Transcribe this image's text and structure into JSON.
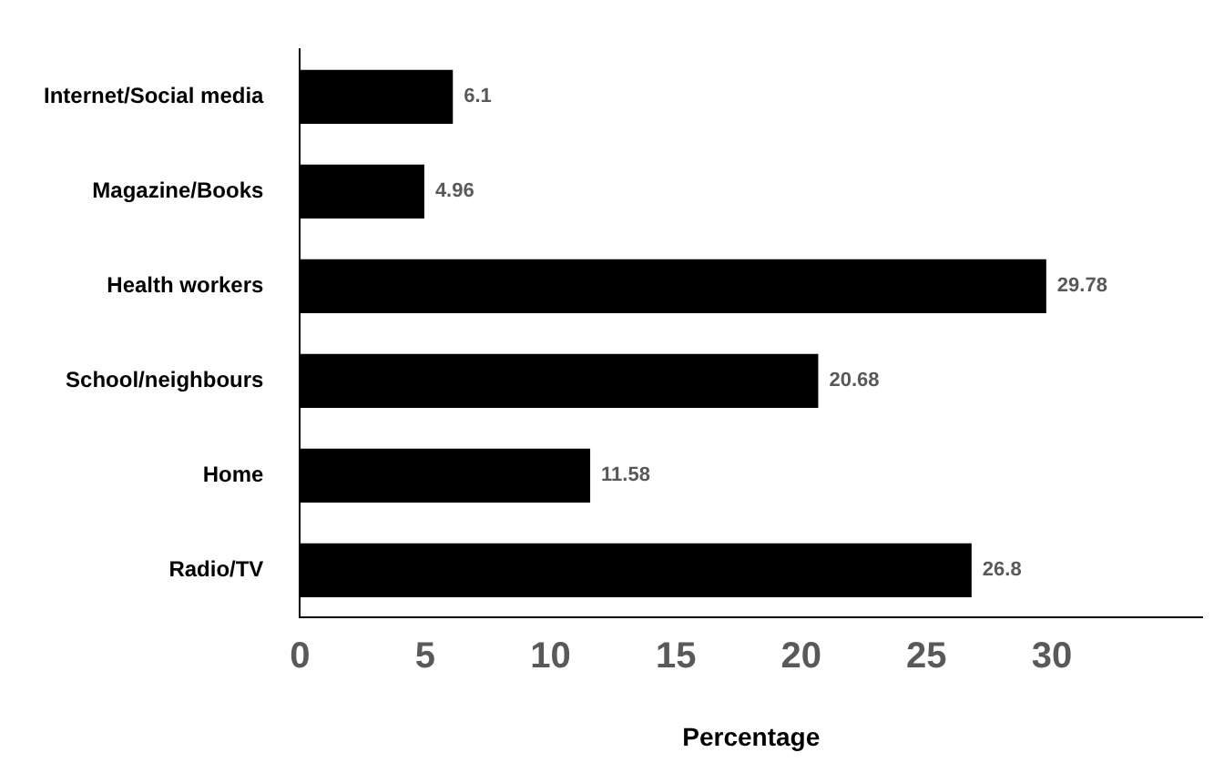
{
  "chart_data": {
    "type": "bar",
    "orientation": "horizontal",
    "xlabel": "Percentage",
    "categories": [
      "Internet/Social media",
      "Magazine/Books",
      "Health workers",
      "School/neighbours",
      "Home",
      "Radio/TV"
    ],
    "values": [
      6.1,
      4.96,
      29.78,
      20.68,
      11.58,
      26.8
    ],
    "color": "#000000",
    "xlim": [
      0,
      36
    ],
    "xticks": [
      0,
      5,
      10,
      15,
      20,
      25,
      30
    ],
    "grid": false,
    "legend": false,
    "data_labels": true
  }
}
